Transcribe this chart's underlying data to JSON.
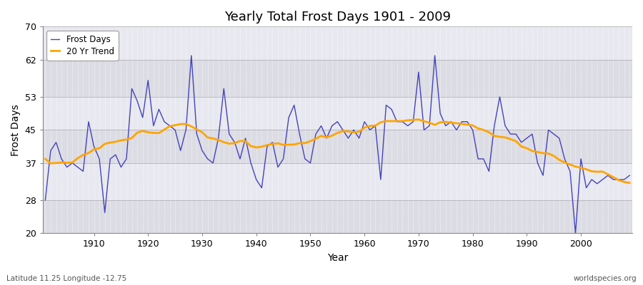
{
  "title": "Yearly Total Frost Days 1901 - 2009",
  "xlabel": "Year",
  "ylabel": "Frost Days",
  "subtitle_left": "Latitude 11.25 Longitude -12.75",
  "subtitle_right": "worldspecies.org",
  "ylim": [
    20,
    70
  ],
  "yticks": [
    20,
    28,
    37,
    45,
    53,
    62,
    70
  ],
  "line_color": "#4444bb",
  "trend_color": "#FFA500",
  "bg_color": "#e8e8ec",
  "band_colors": [
    "#dcdce4",
    "#e8e8f0"
  ],
  "legend_labels": [
    "Frost Days",
    "20 Yr Trend"
  ],
  "years": [
    1901,
    1902,
    1903,
    1904,
    1905,
    1906,
    1907,
    1908,
    1909,
    1910,
    1911,
    1912,
    1913,
    1914,
    1915,
    1916,
    1917,
    1918,
    1919,
    1920,
    1921,
    1922,
    1923,
    1924,
    1925,
    1926,
    1927,
    1928,
    1929,
    1930,
    1931,
    1932,
    1933,
    1934,
    1935,
    1936,
    1937,
    1938,
    1939,
    1940,
    1941,
    1942,
    1943,
    1944,
    1945,
    1946,
    1947,
    1948,
    1949,
    1950,
    1951,
    1952,
    1953,
    1954,
    1955,
    1956,
    1957,
    1958,
    1959,
    1960,
    1961,
    1962,
    1963,
    1964,
    1965,
    1966,
    1967,
    1968,
    1969,
    1970,
    1971,
    1972,
    1973,
    1974,
    1975,
    1976,
    1977,
    1978,
    1979,
    1980,
    1981,
    1982,
    1983,
    1984,
    1985,
    1986,
    1987,
    1988,
    1989,
    1990,
    1991,
    1992,
    1993,
    1994,
    1995,
    1996,
    1997,
    1998,
    1999,
    2000,
    2001,
    2002,
    2003,
    2004,
    2005,
    2006,
    2007,
    2008,
    2009
  ],
  "frost_days": [
    28,
    40,
    42,
    38,
    36,
    37,
    36,
    35,
    47,
    41,
    38,
    25,
    38,
    39,
    36,
    38,
    55,
    52,
    48,
    57,
    46,
    50,
    47,
    46,
    45,
    40,
    45,
    63,
    44,
    40,
    38,
    37,
    43,
    55,
    44,
    42,
    38,
    43,
    37,
    33,
    31,
    41,
    42,
    36,
    38,
    48,
    51,
    44,
    38,
    37,
    44,
    46,
    43,
    46,
    47,
    45,
    43,
    45,
    43,
    47,
    45,
    46,
    33,
    51,
    50,
    47,
    47,
    46,
    47,
    59,
    45,
    46,
    63,
    49,
    46,
    47,
    45,
    47,
    47,
    45,
    38,
    38,
    35,
    46,
    53,
    46,
    44,
    44,
    42,
    43,
    44,
    37,
    34,
    45,
    44,
    43,
    38,
    35,
    20,
    38,
    31,
    33,
    32,
    33,
    34,
    33,
    33,
    33,
    34
  ]
}
